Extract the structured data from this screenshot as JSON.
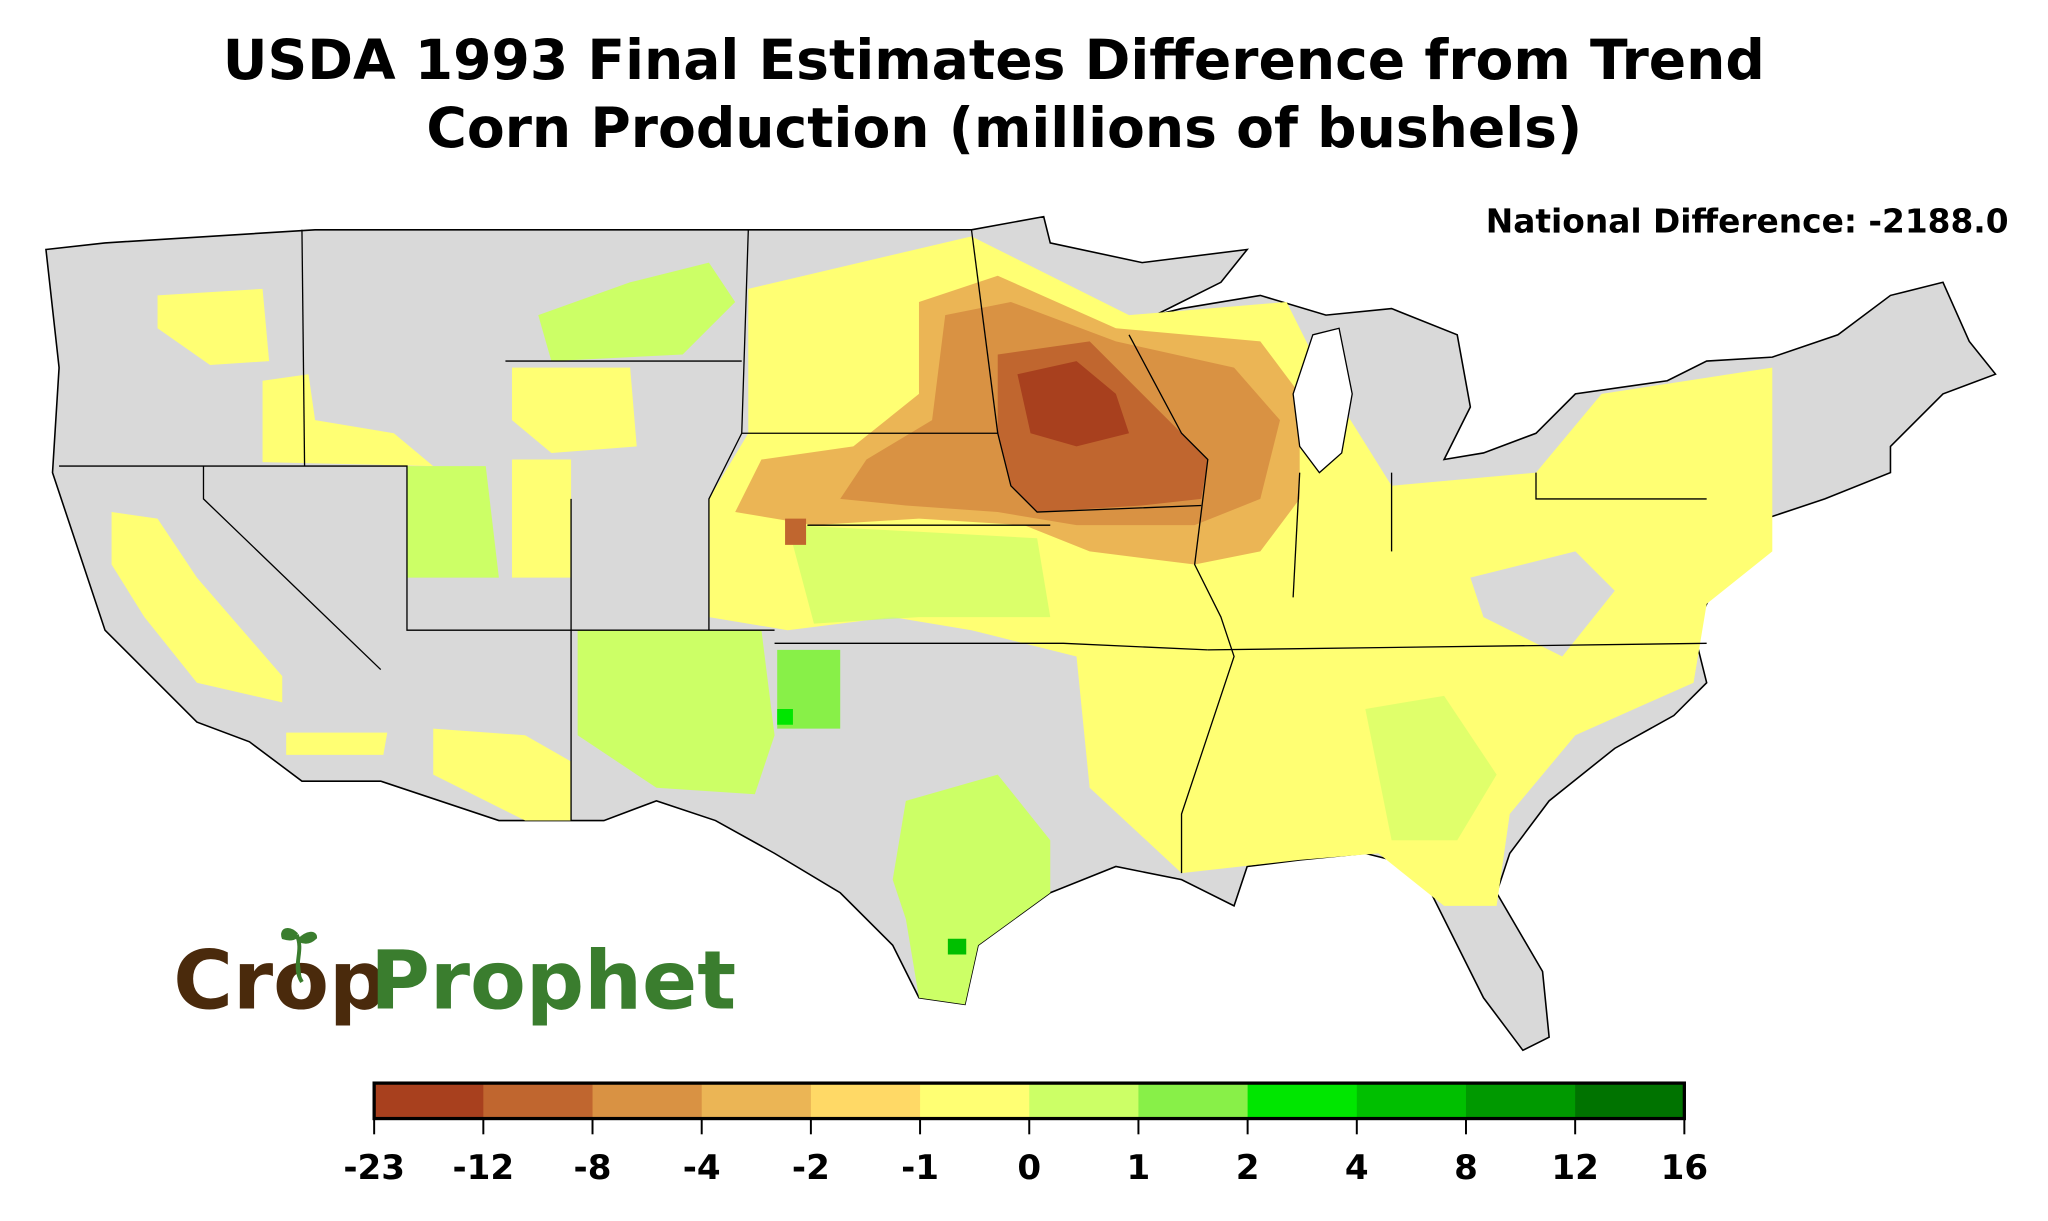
{
  "title": {
    "line1": "USDA 1993 Final Estimates Difference from Trend",
    "line2": "Corn Production (millions of bushels)"
  },
  "national_difference": "National Difference: -2188.0",
  "logo": {
    "part1": "Crop",
    "part2": "Prophet"
  },
  "map": {
    "region": "Contiguous United States, county level",
    "base_color": "#d9d9d9",
    "border_color": "#000000"
  },
  "colorbar": {
    "boundaries": [
      "-23",
      "-12",
      "-8",
      "-4",
      "-2",
      "-1",
      "0",
      "1",
      "2",
      "4",
      "8",
      "12",
      "16"
    ],
    "colors": [
      "#a8401e",
      "#c0662f",
      "#d99243",
      "#ebb555",
      "#ffd966",
      "#ffff73",
      "#ccff66",
      "#88f048",
      "#00e600",
      "#00bf00",
      "#009900",
      "#007300"
    ]
  }
}
